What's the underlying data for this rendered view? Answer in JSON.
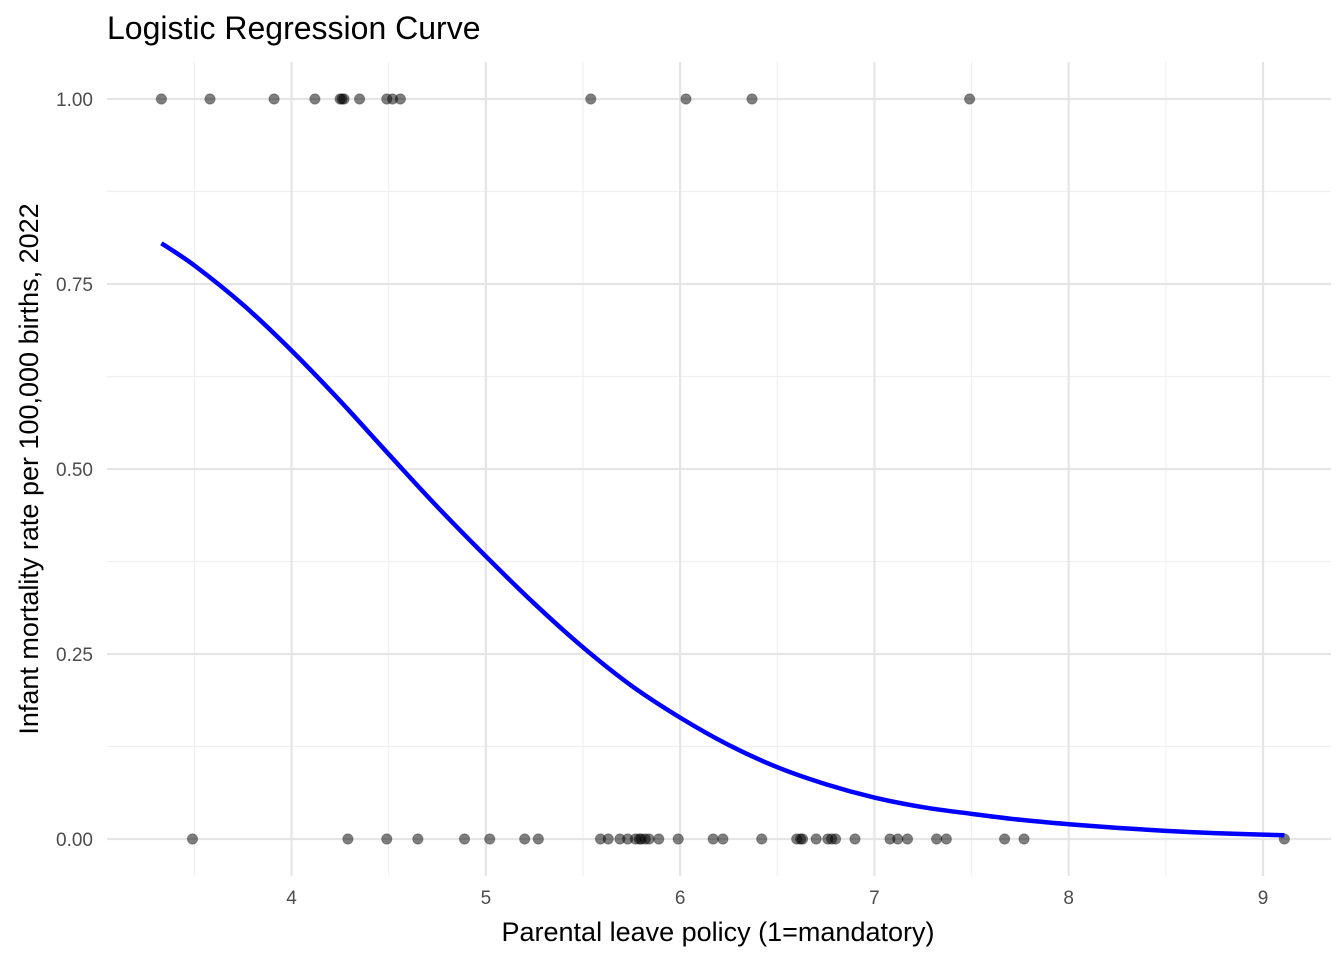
{
  "chart_data": {
    "type": "scatter",
    "title": "Logistic Regression Curve",
    "xlabel": "Parental leave policy (1=mandatory)",
    "ylabel": "Infant mortality rate per 100,000 births, 2022",
    "xlim": [
      3.05,
      9.35
    ],
    "ylim": [
      -0.05,
      1.05
    ],
    "x_ticks": [
      4,
      5,
      6,
      7,
      8,
      9
    ],
    "x_tick_labels": [
      "4",
      "5",
      "6",
      "7",
      "8",
      "9"
    ],
    "x_minor_ticks": [
      3.5,
      4.5,
      5.5,
      6.5,
      7.5,
      8.5
    ],
    "y_ticks": [
      0,
      0.25,
      0.5,
      0.75,
      1.0
    ],
    "y_tick_labels": [
      "0.00",
      "0.25",
      "0.50",
      "0.75",
      "1.00"
    ],
    "y_minor_ticks": [
      0.125,
      0.375,
      0.625,
      0.875
    ],
    "grid": true,
    "points_color": "#000000",
    "points_opacity": 0.5,
    "curve_color": "#0000ff",
    "points": [
      {
        "x": 3.33,
        "y": 1
      },
      {
        "x": 3.58,
        "y": 1
      },
      {
        "x": 3.91,
        "y": 1
      },
      {
        "x": 4.12,
        "y": 1
      },
      {
        "x": 4.25,
        "y": 1
      },
      {
        "x": 4.26,
        "y": 1
      },
      {
        "x": 4.27,
        "y": 1
      },
      {
        "x": 4.35,
        "y": 1
      },
      {
        "x": 4.49,
        "y": 1
      },
      {
        "x": 4.52,
        "y": 1
      },
      {
        "x": 4.56,
        "y": 1
      },
      {
        "x": 5.54,
        "y": 1
      },
      {
        "x": 6.03,
        "y": 1
      },
      {
        "x": 6.37,
        "y": 1
      },
      {
        "x": 7.49,
        "y": 1
      },
      {
        "x": 3.49,
        "y": 0
      },
      {
        "x": 4.29,
        "y": 0
      },
      {
        "x": 4.49,
        "y": 0
      },
      {
        "x": 4.65,
        "y": 0
      },
      {
        "x": 4.89,
        "y": 0
      },
      {
        "x": 5.02,
        "y": 0
      },
      {
        "x": 5.2,
        "y": 0
      },
      {
        "x": 5.27,
        "y": 0
      },
      {
        "x": 5.59,
        "y": 0
      },
      {
        "x": 5.63,
        "y": 0
      },
      {
        "x": 5.69,
        "y": 0
      },
      {
        "x": 5.73,
        "y": 0
      },
      {
        "x": 5.77,
        "y": 0
      },
      {
        "x": 5.79,
        "y": 0
      },
      {
        "x": 5.8,
        "y": 0
      },
      {
        "x": 5.82,
        "y": 0
      },
      {
        "x": 5.84,
        "y": 0
      },
      {
        "x": 5.89,
        "y": 0
      },
      {
        "x": 5.99,
        "y": 0
      },
      {
        "x": 6.17,
        "y": 0
      },
      {
        "x": 6.22,
        "y": 0
      },
      {
        "x": 6.42,
        "y": 0
      },
      {
        "x": 6.6,
        "y": 0
      },
      {
        "x": 6.62,
        "y": 0
      },
      {
        "x": 6.63,
        "y": 0
      },
      {
        "x": 6.7,
        "y": 0
      },
      {
        "x": 6.76,
        "y": 0
      },
      {
        "x": 6.78,
        "y": 0
      },
      {
        "x": 6.8,
        "y": 0
      },
      {
        "x": 6.9,
        "y": 0
      },
      {
        "x": 7.08,
        "y": 0
      },
      {
        "x": 7.12,
        "y": 0
      },
      {
        "x": 7.17,
        "y": 0
      },
      {
        "x": 7.32,
        "y": 0
      },
      {
        "x": 7.37,
        "y": 0
      },
      {
        "x": 7.67,
        "y": 0
      },
      {
        "x": 7.77,
        "y": 0
      },
      {
        "x": 9.11,
        "y": 0
      }
    ],
    "curve": {
      "x": [
        3.33,
        3.5,
        3.75,
        4.0,
        4.25,
        4.5,
        4.75,
        5.0,
        5.25,
        5.5,
        5.75,
        6.0,
        6.25,
        6.5,
        6.75,
        7.0,
        7.25,
        7.5,
        7.75,
        8.0,
        8.25,
        8.5,
        8.75,
        9.11
      ],
      "y": [
        0.805,
        0.775,
        0.722,
        0.66,
        0.592,
        0.52,
        0.449,
        0.382,
        0.318,
        0.259,
        0.207,
        0.164,
        0.127,
        0.097,
        0.074,
        0.056,
        0.043,
        0.034,
        0.026,
        0.02,
        0.015,
        0.011,
        0.008,
        0.005
      ]
    }
  }
}
